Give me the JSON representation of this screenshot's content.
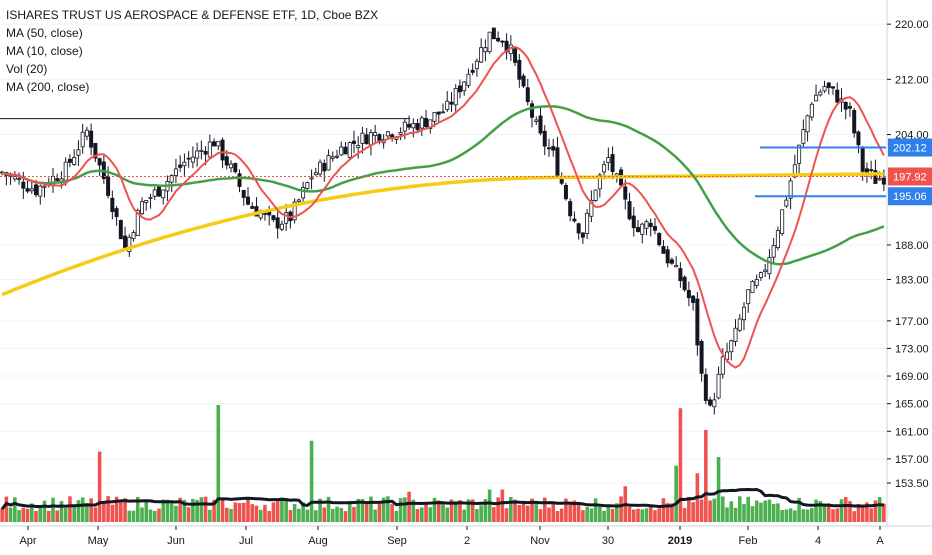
{
  "legend": {
    "title": "ISHARES TRUST US AEROSPACE & DEFENSE ETF, 1D, Cboe BZX",
    "ma50": "MA (50, close)",
    "ma10": "MA (10, close)",
    "vol": "Vol (20)",
    "ma200": "MA (200, close)"
  },
  "colors": {
    "up": "#4caf50",
    "down": "#ef5350",
    "ma10": "#ef5350",
    "ma50": "#43a047",
    "ma200": "#f5cc14",
    "vol_ma": "#131722",
    "level": "#2f80ed",
    "last": "#ef5350",
    "resistance": "#131722"
  },
  "chart_data": {
    "type": "candlestick",
    "ylim": [
      152,
      222
    ],
    "y_ticks": [
      "220.00",
      "212.00",
      "204.00",
      "202.12",
      "197.92",
      "195.06",
      "188.00",
      "183.00",
      "177.00",
      "173.00",
      "169.00",
      "165.00",
      "161.00",
      "157.00",
      "153.50"
    ],
    "x_ticks": [
      "Apr",
      "May",
      "Jun",
      "Jul",
      "Aug",
      "Sep",
      "2",
      "Nov",
      "30",
      "2019",
      "Feb",
      "4",
      "A"
    ],
    "levels": {
      "upper": 202.12,
      "last": 197.92,
      "lower": 195.06,
      "resistance": 206.3
    },
    "price_anchors": [
      [
        0,
        198.5
      ],
      [
        8,
        196
      ],
      [
        15,
        199
      ],
      [
        20,
        204.5
      ],
      [
        25,
        196
      ],
      [
        29,
        187.5
      ],
      [
        33,
        194
      ],
      [
        37,
        196
      ],
      [
        43,
        200
      ],
      [
        50,
        203
      ],
      [
        54,
        199
      ],
      [
        58,
        194
      ],
      [
        64,
        191
      ],
      [
        68,
        192
      ],
      [
        73,
        198
      ],
      [
        80,
        202
      ],
      [
        87,
        204
      ],
      [
        93,
        204.5
      ],
      [
        100,
        206
      ],
      [
        105,
        207.8
      ],
      [
        110,
        213
      ],
      [
        115,
        218.5
      ],
      [
        118,
        218
      ],
      [
        120,
        216
      ],
      [
        123,
        210
      ],
      [
        127,
        203.5
      ],
      [
        130,
        201
      ],
      [
        134,
        193
      ],
      [
        137,
        189.5
      ],
      [
        140,
        196.5
      ],
      [
        143,
        200.5
      ],
      [
        147,
        194
      ],
      [
        150,
        190
      ],
      [
        153,
        191.5
      ],
      [
        156,
        187
      ],
      [
        160,
        183
      ],
      [
        163,
        179
      ],
      [
        165,
        169
      ],
      [
        167,
        164
      ],
      [
        170,
        171
      ],
      [
        173,
        175
      ],
      [
        176,
        181
      ],
      [
        179,
        183
      ],
      [
        182,
        188.5
      ],
      [
        185,
        195
      ],
      [
        188,
        202
      ],
      [
        191,
        209
      ],
      [
        194,
        211
      ],
      [
        197,
        209.5
      ],
      [
        200,
        207
      ],
      [
        203,
        199
      ],
      [
        206,
        197.5
      ],
      [
        208,
        197.9
      ]
    ],
    "volume_scale_max": 120,
    "volume_ma_level": 28,
    "volume_spikes": [
      [
        23,
        65
      ],
      [
        51,
        108
      ],
      [
        73,
        75
      ],
      [
        96,
        28
      ],
      [
        115,
        30
      ],
      [
        118,
        30
      ],
      [
        147,
        33
      ],
      [
        159,
        52
      ],
      [
        160,
        105
      ],
      [
        164,
        45
      ],
      [
        166,
        85
      ],
      [
        169,
        60
      ]
    ]
  }
}
